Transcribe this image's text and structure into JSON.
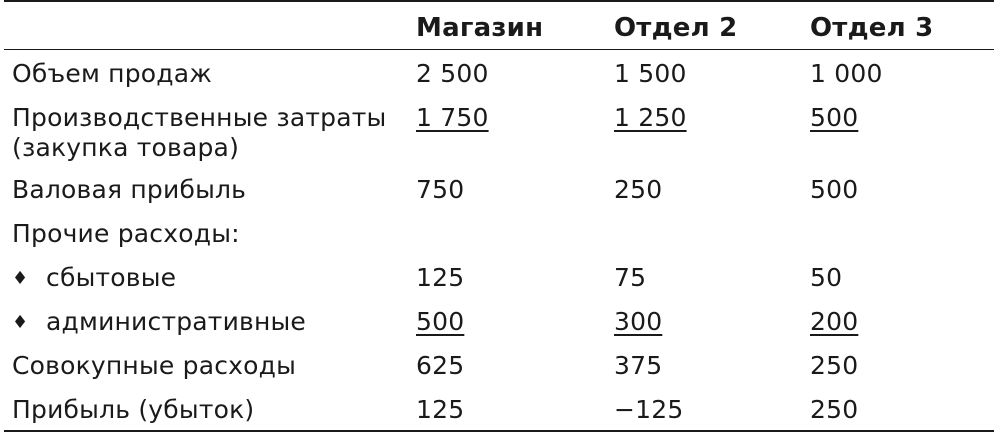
{
  "header": {
    "col1": "Магазин",
    "col2": "Отдел 2",
    "col3": "Отдел 3"
  },
  "rows": [
    {
      "label": "Объем продаж",
      "v1": "2 500",
      "v2": "1 500",
      "v3": "1 000",
      "underline": false
    },
    {
      "label": "Производственные затраты (закупка товара)",
      "v1": "1 750",
      "v2": "1 250",
      "v3": "500",
      "underline": true
    },
    {
      "label": "Валовая прибыль",
      "v1": "750",
      "v2": "250",
      "v3": "500",
      "underline": false
    },
    {
      "label": "Прочие расходы:",
      "v1": "",
      "v2": "",
      "v3": "",
      "underline": false
    },
    {
      "label": "сбытовые",
      "bullet": "♦",
      "v1": "125",
      "v2": "75",
      "v3": "50",
      "underline": false
    },
    {
      "label": "административные",
      "bullet": "♦",
      "v1": "500",
      "v2": "300",
      "v3": "200",
      "underline": true
    },
    {
      "label": "Совокупные расходы",
      "v1": "625",
      "v2": "375",
      "v3": "250",
      "underline": false
    },
    {
      "label": "Прибыль (убыток)",
      "v1": "125",
      "v2": "−125",
      "v3": "250",
      "underline": false
    }
  ]
}
